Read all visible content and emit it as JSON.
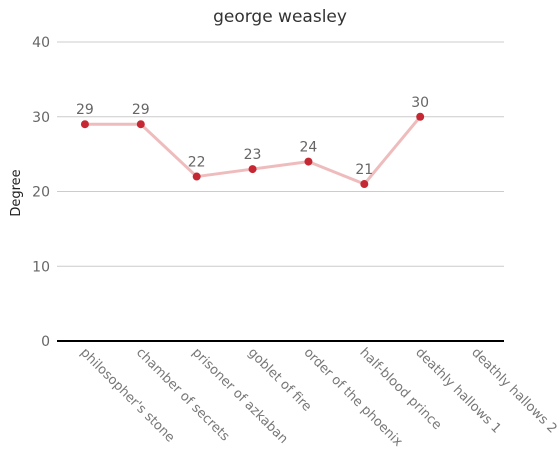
{
  "chart_data": {
    "type": "line",
    "title": "george weasley",
    "xlabel": "",
    "ylabel": "Degree",
    "ylim": [
      0,
      40
    ],
    "yticks": [
      "0",
      "10",
      "20",
      "30",
      "40"
    ],
    "categories": [
      "philosopher's stone",
      "chamber of secrets",
      "prisoner of azkaban",
      "goblet of fire",
      "order of the phoenix",
      "half-blood prince",
      "deathly hallows 1",
      "deathly hallows 2"
    ],
    "series": [
      {
        "values": [
          29,
          29,
          22,
          23,
          24,
          21,
          30,
          null
        ]
      }
    ],
    "data_labels": [
      "29",
      "29",
      "22",
      "23",
      "24",
      "21",
      "30",
      ""
    ],
    "grid": true,
    "legend": "none",
    "colors": {
      "line": "#efbcbd",
      "marker": "#c62833",
      "grid": "#cccccc",
      "axis": "#000000"
    }
  }
}
